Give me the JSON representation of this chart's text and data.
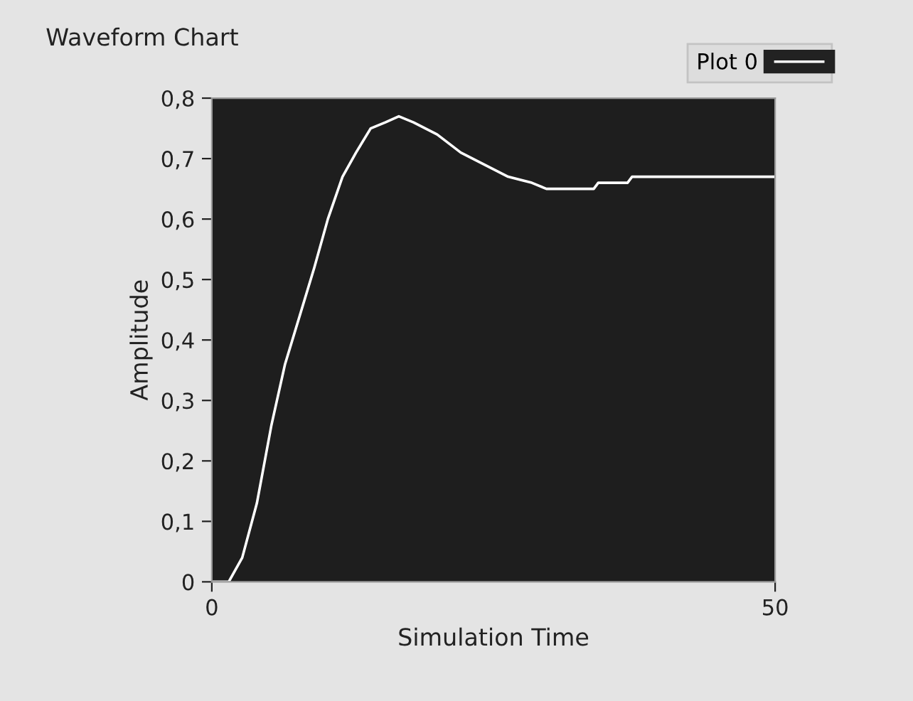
{
  "chart_data": {
    "type": "line",
    "title": "Waveform Chart",
    "xlabel": "Simulation Time",
    "ylabel": "Amplitude",
    "x": [
      0,
      1.5,
      2.7,
      4.0,
      5.3,
      6.5,
      7.8,
      9.1,
      10.3,
      11.6,
      12.8,
      14.1,
      15.4,
      16.6,
      17.9,
      20.0,
      22.1,
      24.2,
      26.3,
      28.4,
      29.7,
      33.9,
      34.3,
      36.9,
      37.3,
      40.0,
      40.4,
      50
    ],
    "series": [
      {
        "name": "Plot 0",
        "color": "#ffffff",
        "values": [
          0,
          0,
          0.04,
          0.13,
          0.26,
          0.36,
          0.44,
          0.52,
          0.6,
          0.67,
          0.71,
          0.75,
          0.76,
          0.77,
          0.76,
          0.74,
          0.71,
          0.69,
          0.67,
          0.66,
          0.65,
          0.65,
          0.66,
          0.66,
          0.67,
          0.67,
          0.67,
          0.67
        ]
      }
    ],
    "xlim": [
      0,
      50
    ],
    "xticks": [
      0,
      50
    ],
    "ylim": [
      0,
      0.8
    ],
    "yticks": [
      0,
      {
        "value": 0.1,
        "label": "0,1"
      },
      {
        "value": 0.2,
        "label": "0,2"
      },
      {
        "value": 0.3,
        "label": "0,3"
      },
      {
        "value": 0.4,
        "label": "0,4"
      },
      {
        "value": 0.5,
        "label": "0,5"
      },
      {
        "value": 0.6,
        "label": "0,6"
      },
      {
        "value": 0.7,
        "label": "0,7"
      },
      {
        "value": 0.8,
        "label": "0,8"
      }
    ],
    "grid": false,
    "legend": "top right",
    "marker": "none",
    "line_style": "solid"
  }
}
